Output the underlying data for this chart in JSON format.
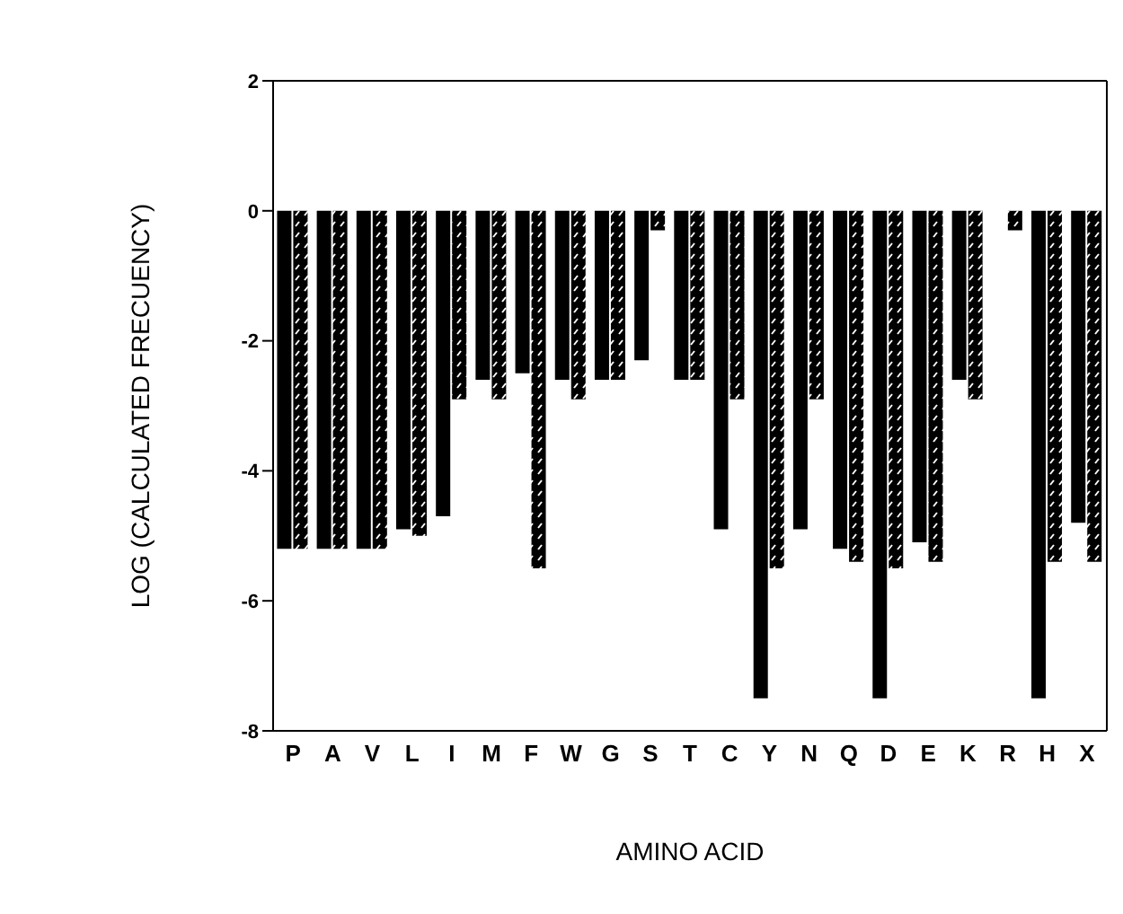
{
  "chart_data": {
    "type": "bar",
    "xlabel": "AMINO ACID",
    "ylabel": "LOG (CALCULATED FRECUENCY)",
    "categories": [
      "P",
      "A",
      "V",
      "L",
      "I",
      "M",
      "F",
      "W",
      "G",
      "S",
      "T",
      "C",
      "Y",
      "N",
      "Q",
      "D",
      "E",
      "K",
      "R",
      "H",
      "X"
    ],
    "series": [
      {
        "color": "#000000",
        "values": [
          -5.2,
          -5.2,
          -5.2,
          -4.9,
          -4.7,
          -2.6,
          -2.5,
          -2.6,
          -2.6,
          -2.3,
          -2.6,
          -4.9,
          -7.5,
          -4.9,
          -5.2,
          -7.5,
          -5.1,
          -2.6,
          null,
          -7.5,
          -4.8
        ]
      },
      {
        "color": "#000000",
        "values": [
          -5.2,
          -5.2,
          -5.2,
          -5.0,
          -2.9,
          -2.9,
          -5.5,
          -2.9,
          -2.6,
          -0.3,
          -2.6,
          -2.9,
          -5.5,
          -2.9,
          -5.4,
          -5.5,
          -5.4,
          -2.9,
          -0.3,
          -5.4,
          -5.4
        ]
      }
    ],
    "ylim": [
      -8,
      2
    ],
    "yticks": [
      -8,
      -6,
      -4,
      -2,
      0,
      2
    ],
    "grid": false,
    "legend": false
  }
}
